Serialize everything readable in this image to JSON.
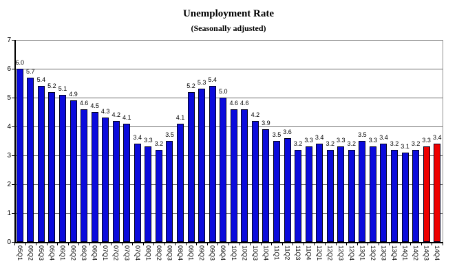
{
  "chart_data": {
    "type": "bar",
    "title": "Unemployment Rate",
    "subtitle": "(Seasonally adjusted)",
    "xlabel": "",
    "ylabel": "",
    "ylim": [
      0,
      7
    ],
    "yticks": [
      0,
      1,
      2,
      3,
      4,
      5,
      6,
      7
    ],
    "grid": true,
    "legend": "none",
    "data_labels": true,
    "label_decimals": 1,
    "categories": [
      "05Q1",
      "05Q2",
      "05Q3",
      "05Q4",
      "06Q1",
      "06Q2",
      "06Q3",
      "06Q4",
      "07Q1",
      "07Q2",
      "07Q3",
      "07Q4",
      "08Q1",
      "08Q2",
      "08Q3",
      "08Q4",
      "09Q1",
      "09Q2",
      "09Q3",
      "09Q4",
      "10Q1",
      "10Q2",
      "10Q3",
      "10Q4",
      "11Q1",
      "11Q2",
      "11Q3",
      "11Q4",
      "12Q1",
      "12Q2",
      "12Q3",
      "12Q4",
      "13Q1",
      "13Q2",
      "13Q3",
      "13Q4",
      "14Q1",
      "14Q2",
      "14Q3",
      "14Q4"
    ],
    "values": [
      6.0,
      5.7,
      5.4,
      5.2,
      5.1,
      4.9,
      4.6,
      4.5,
      4.3,
      4.2,
      4.1,
      3.4,
      3.3,
      3.2,
      3.5,
      4.1,
      5.2,
      5.3,
      5.4,
      5.0,
      4.6,
      4.6,
      4.2,
      3.9,
      3.5,
      3.6,
      3.2,
      3.3,
      3.4,
      3.2,
      3.3,
      3.2,
      3.5,
      3.3,
      3.4,
      3.2,
      3.1,
      3.2,
      3.3,
      3.4
    ],
    "highlighted_categories": [
      "14Q3",
      "14Q4"
    ],
    "colors": {
      "bar_default": "#0b0bdc",
      "bar_highlight": "#ee0000",
      "gridline": "#6b6b6b",
      "plot_border": "#909090",
      "axis": "#000000",
      "background": "#ffffff"
    }
  }
}
